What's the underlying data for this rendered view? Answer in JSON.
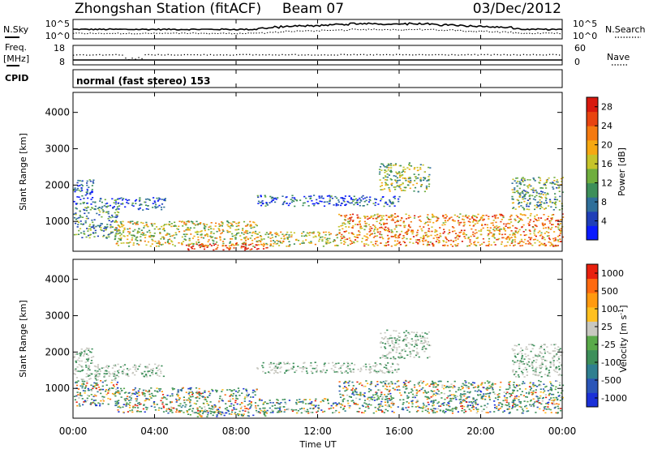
{
  "header": {
    "station": "Zhongshan Station (fitACF)",
    "beam": "Beam 07",
    "date": "03/Dec/2012"
  },
  "top_strip": {
    "left_label": "N.Sky",
    "left_ticks": [
      "10^5",
      "10^0"
    ],
    "right_ticks": [
      "10^5",
      "10^0"
    ],
    "right_label": "N.Search"
  },
  "freq_strip": {
    "left_label_1": "Freq.",
    "left_label_2": "[MHz]",
    "left_ticks": [
      "18",
      "8"
    ],
    "right_ticks": [
      "60",
      "0"
    ],
    "right_label": "Nave"
  },
  "cpid": {
    "label": "CPID",
    "program": "normal (fast stereo) 153"
  },
  "chart_data": [
    {
      "type": "heatmap",
      "title": "",
      "ylabel": "Slant Range [km]",
      "xlabel": "Time UT",
      "xlim": [
        "00:00",
        "24:00"
      ],
      "ylim": [
        180,
        4550
      ],
      "x_ticks": [
        "00:00",
        "04:00",
        "08:00",
        "12:00",
        "16:00",
        "20:00",
        "00:00"
      ],
      "y_ticks": [
        1000,
        2000,
        3000,
        4000
      ],
      "colorbar": {
        "label": "Power [dB]",
        "ticks": [
          4,
          8,
          12,
          16,
          20,
          24,
          28
        ],
        "range": [
          0,
          30
        ],
        "colors": [
          "#0a1aff",
          "#1f3fb8",
          "#2f6f9a",
          "#3d8f5a",
          "#6fae3e",
          "#c6c42a",
          "#f6a812",
          "#f57a10",
          "#e84410",
          "#d8180e"
        ]
      },
      "scatter_regions": [
        {
          "t": [
            0.0,
            1.0
          ],
          "r": [
            1450,
            2150
          ],
          "level": 0.2
        },
        {
          "t": [
            0.0,
            2.2
          ],
          "r": [
            500,
            1400
          ],
          "level": 0.35
        },
        {
          "t": [
            1.0,
            4.5
          ],
          "r": [
            1300,
            1650
          ],
          "level": 0.22
        },
        {
          "t": [
            2.0,
            9.0
          ],
          "r": [
            300,
            1000
          ],
          "level": 0.55
        },
        {
          "t": [
            5.5,
            9.5
          ],
          "r": [
            200,
            380
          ],
          "level": 0.95
        },
        {
          "t": [
            9.0,
            16.0
          ],
          "r": [
            1400,
            1700
          ],
          "level": 0.2
        },
        {
          "t": [
            9.0,
            13.0
          ],
          "r": [
            300,
            700
          ],
          "level": 0.55
        },
        {
          "t": [
            13.0,
            24.0
          ],
          "r": [
            300,
            1200
          ],
          "level": 0.7
        },
        {
          "t": [
            15.0,
            17.5
          ],
          "r": [
            1800,
            2600
          ],
          "level": 0.45
        },
        {
          "t": [
            21.5,
            24.0
          ],
          "r": [
            1300,
            2200
          ],
          "level": 0.4
        }
      ]
    },
    {
      "type": "heatmap",
      "title": "",
      "ylabel": "Slant Range [km]",
      "xlabel": "Time UT",
      "xlim": [
        "00:00",
        "24:00"
      ],
      "ylim": [
        180,
        4550
      ],
      "x_ticks": [
        "00:00",
        "04:00",
        "08:00",
        "12:00",
        "16:00",
        "20:00",
        "00:00"
      ],
      "y_ticks": [
        1000,
        2000,
        3000,
        4000
      ],
      "colorbar": {
        "label": "Velocity [m s",
        "label_superscript": "-1",
        "label_close": "]",
        "ticks": [
          "1000",
          "500",
          "100",
          "25",
          "-25",
          "-100",
          "-500",
          "-1000"
        ],
        "range": [
          -1200,
          1200
        ],
        "colors": [
          "#1a30d8",
          "#2a55b8",
          "#2f7f90",
          "#3d8f5a",
          "#5aaa4a",
          "#c8c8c0",
          "#ffc020",
          "#ff9a10",
          "#ff6a10",
          "#e8200e"
        ]
      },
      "time_axis_label": "Time UT"
    }
  ]
}
